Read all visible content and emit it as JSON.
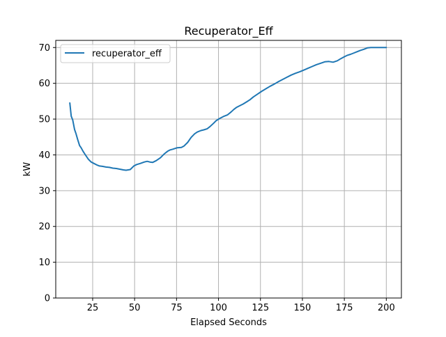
{
  "chart_data": {
    "type": "line",
    "title": "Recuperator_Eff",
    "xlabel": "Elapsed Seconds",
    "ylabel": "kW",
    "xlim": [
      3,
      209
    ],
    "ylim": [
      0,
      72
    ],
    "xticks": [
      25,
      50,
      75,
      100,
      125,
      150,
      175,
      200
    ],
    "yticks": [
      0,
      10,
      20,
      30,
      40,
      50,
      60,
      70
    ],
    "grid": true,
    "legend_position": "top-left",
    "colors": {
      "series": "#1f77b4",
      "grid": "#b0b0b0",
      "axes": "#000000"
    },
    "series": [
      {
        "name": "recuperator_eff",
        "x": [
          11.4,
          12.2,
          13.1,
          14.2,
          15.1,
          16.0,
          17.2,
          18.1,
          19.3,
          20.8,
          22.4,
          24.1,
          25.8,
          27.4,
          29.1,
          30.8,
          32.9,
          35.0,
          37.0,
          39.1,
          41.2,
          43.3,
          44.9,
          47.4,
          49.5,
          51.2,
          53.3,
          55.8,
          57.5,
          59.1,
          60.8,
          62.9,
          65.4,
          67.5,
          69.6,
          71.2,
          72.9,
          75.4,
          77.9,
          79.5,
          81.6,
          83.7,
          85.8,
          87.4,
          89.5,
          91.2,
          93.3,
          94.9,
          97.0,
          98.7,
          100.8,
          103.3,
          105.4,
          107.5,
          109.1,
          110.8,
          112.5,
          114.6,
          116.7,
          118.7,
          120.8,
          123.3,
          125.8,
          128.3,
          130.8,
          133.3,
          135.8,
          138.3,
          140.8,
          143.3,
          145.8,
          148.3,
          150.8,
          153.3,
          155.8,
          158.3,
          160.8,
          163.3,
          165.8,
          168.3,
          170.8,
          172.9,
          174.9,
          176.6,
          178.7,
          180.8,
          182.4,
          184.5,
          186.6,
          188.7,
          190.8,
          193.3,
          195.8,
          198.3,
          200.0
        ],
        "values": [
          54.5,
          50.8,
          49.8,
          47.1,
          45.9,
          44.4,
          42.6,
          42.0,
          41.0,
          39.9,
          38.8,
          38.0,
          37.6,
          37.2,
          36.9,
          36.8,
          36.6,
          36.5,
          36.3,
          36.2,
          36.0,
          35.8,
          35.7,
          35.9,
          36.9,
          37.3,
          37.6,
          38.0,
          38.2,
          38.0,
          37.9,
          38.4,
          39.2,
          40.2,
          41.0,
          41.4,
          41.6,
          42.0,
          42.1,
          42.5,
          43.5,
          44.9,
          45.9,
          46.4,
          46.8,
          47.0,
          47.3,
          47.9,
          48.8,
          49.6,
          50.2,
          50.8,
          51.2,
          52.0,
          52.7,
          53.3,
          53.7,
          54.2,
          54.8,
          55.4,
          56.2,
          57.0,
          57.8,
          58.5,
          59.2,
          59.8,
          60.5,
          61.1,
          61.7,
          62.3,
          62.8,
          63.2,
          63.7,
          64.2,
          64.7,
          65.2,
          65.6,
          66.0,
          66.1,
          65.9,
          66.3,
          66.9,
          67.4,
          67.8,
          68.1,
          68.5,
          68.8,
          69.2,
          69.5,
          69.9,
          70.0,
          70.0,
          70.0,
          70.0,
          70.0
        ]
      }
    ]
  }
}
